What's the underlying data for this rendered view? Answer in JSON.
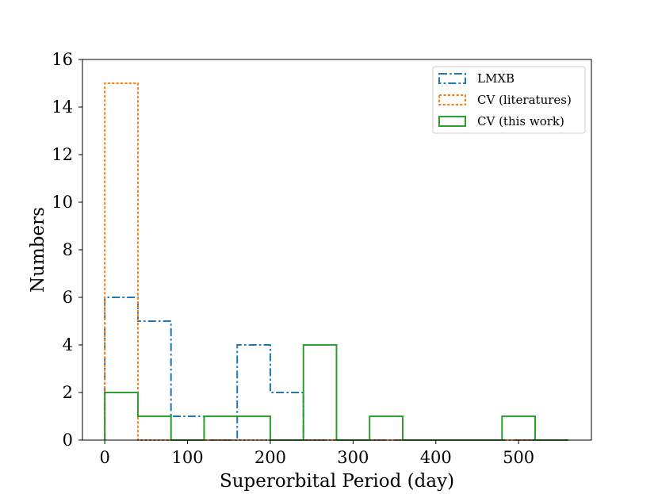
{
  "chart_data": {
    "type": "histogram-step",
    "xlabel": "Superorbital Period (day)",
    "ylabel": "Numbers",
    "xlim": [
      -27,
      588
    ],
    "ylim": [
      0,
      16
    ],
    "xticks": [
      0,
      100,
      200,
      300,
      400,
      500
    ],
    "yticks": [
      0,
      2,
      4,
      6,
      8,
      10,
      12,
      14,
      16
    ],
    "bin_edges": [
      0,
      40,
      80,
      120,
      160,
      200,
      240,
      280,
      320,
      360,
      400,
      440,
      480,
      520,
      560
    ],
    "legend_position": "top-right",
    "series": [
      {
        "name": "LMXB",
        "color": "#1f77b4",
        "style": "dashdot",
        "counts": [
          6,
          5,
          1,
          0,
          4,
          2,
          0,
          0,
          0,
          0,
          0,
          0,
          0,
          0
        ]
      },
      {
        "name": "CV (literatures)",
        "color": "#ff7f0e",
        "style": "dotted",
        "counts": [
          15,
          0,
          0,
          0,
          0,
          0,
          0,
          0,
          0,
          0,
          0,
          0,
          0,
          0
        ]
      },
      {
        "name": "CV (this work)",
        "color": "#2ca02c",
        "style": "solid",
        "counts": [
          2,
          1,
          0,
          1,
          1,
          0,
          4,
          0,
          1,
          0,
          0,
          0,
          1,
          0
        ]
      }
    ]
  }
}
